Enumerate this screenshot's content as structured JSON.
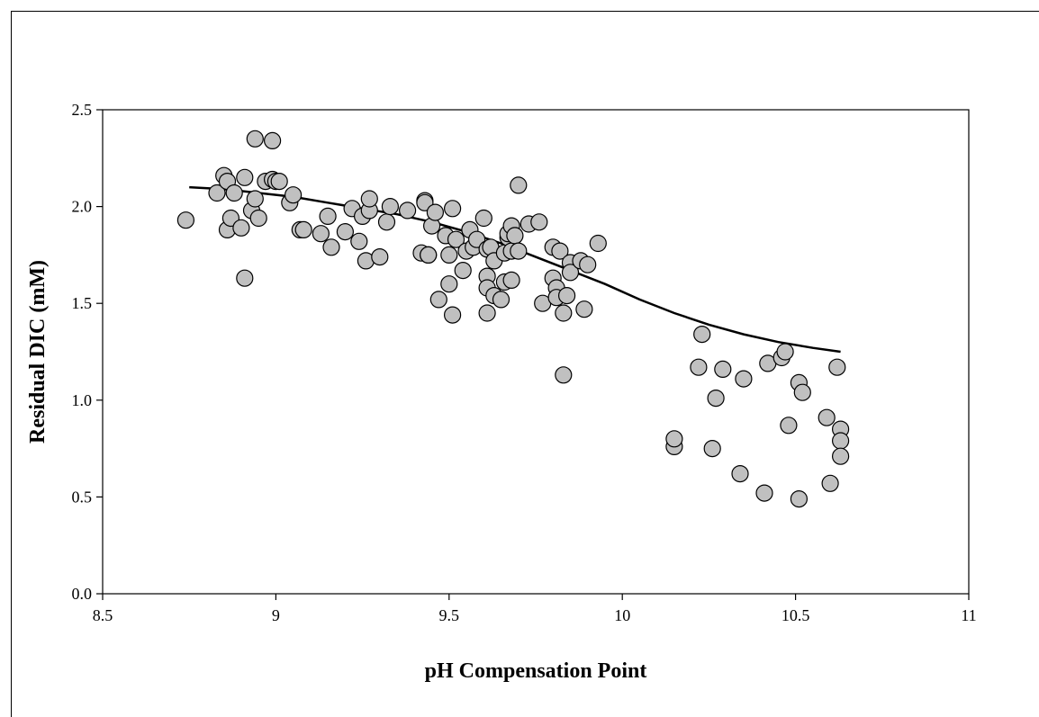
{
  "chart_data": {
    "type": "scatter",
    "title": "",
    "xlabel": "pH Compensation Point",
    "ylabel": "Residual DIC (mM)",
    "xlim": [
      8.5,
      11
    ],
    "ylim": [
      0.0,
      2.5
    ],
    "xticks": [
      8.5,
      9,
      9.5,
      10,
      10.5,
      11
    ],
    "xtick_labels": [
      "8.5",
      "9",
      "9.5",
      "10",
      "10.5",
      "11"
    ],
    "yticks": [
      0.0,
      0.5,
      1.0,
      1.5,
      2.0,
      2.5
    ],
    "ytick_labels": [
      "0.0",
      "0.5",
      "1.0",
      "1.5",
      "2.0",
      "2.5"
    ],
    "grid": false,
    "marker_color": "#c0c0c0",
    "series": [
      {
        "kind": "points",
        "x": [
          8.74,
          8.83,
          8.85,
          8.86,
          8.86,
          8.87,
          8.88,
          8.9,
          8.91,
          8.91,
          8.93,
          8.94,
          8.94,
          8.95,
          8.97,
          8.99,
          8.99,
          9.0,
          9.01,
          9.04,
          9.05,
          9.07,
          9.08,
          9.13,
          9.15,
          9.16,
          9.2,
          9.22,
          9.24,
          9.25,
          9.26,
          9.27,
          9.27,
          9.3,
          9.32,
          9.33,
          9.38,
          9.42,
          9.43,
          9.43,
          9.44,
          9.44,
          9.45,
          9.46,
          9.47,
          9.49,
          9.5,
          9.5,
          9.51,
          9.51,
          9.52,
          9.54,
          9.55,
          9.56,
          9.57,
          9.58,
          9.6,
          9.61,
          9.61,
          9.61,
          9.61,
          9.62,
          9.63,
          9.63,
          9.65,
          9.66,
          9.66,
          9.67,
          9.67,
          9.68,
          9.68,
          9.68,
          9.69,
          9.7,
          9.7,
          9.73,
          9.76,
          9.77,
          9.8,
          9.8,
          9.81,
          9.81,
          9.82,
          9.83,
          9.83,
          9.84,
          9.85,
          9.85,
          9.88,
          9.89,
          9.9,
          9.93,
          10.15,
          10.15,
          10.22,
          10.23,
          10.26,
          10.27,
          10.29,
          10.34,
          10.35,
          10.41,
          10.42,
          10.46,
          10.47,
          10.48,
          10.51,
          10.51,
          10.52,
          10.59,
          10.6,
          10.62,
          10.63,
          10.63,
          10.63
        ],
        "y": [
          1.93,
          2.07,
          2.16,
          2.13,
          1.88,
          1.94,
          2.07,
          1.89,
          1.63,
          2.15,
          1.98,
          2.04,
          2.35,
          1.94,
          2.13,
          2.34,
          2.14,
          2.13,
          2.13,
          2.02,
          2.06,
          1.88,
          1.88,
          1.86,
          1.95,
          1.79,
          1.87,
          1.99,
          1.82,
          1.95,
          1.72,
          1.98,
          2.04,
          1.74,
          1.92,
          2.0,
          1.98,
          1.76,
          2.03,
          2.02,
          1.75,
          1.75,
          1.9,
          1.97,
          1.52,
          1.85,
          1.75,
          1.6,
          1.44,
          1.99,
          1.83,
          1.67,
          1.77,
          1.88,
          1.79,
          1.83,
          1.94,
          1.64,
          1.78,
          1.58,
          1.45,
          1.79,
          1.54,
          1.72,
          1.52,
          1.76,
          1.61,
          1.84,
          1.86,
          1.77,
          1.62,
          1.9,
          1.85,
          2.11,
          1.77,
          1.91,
          1.92,
          1.5,
          1.79,
          1.63,
          1.58,
          1.53,
          1.77,
          1.13,
          1.45,
          1.54,
          1.71,
          1.66,
          1.72,
          1.47,
          1.7,
          1.81,
          0.76,
          0.8,
          1.17,
          1.34,
          0.75,
          1.01,
          1.16,
          0.62,
          1.11,
          0.52,
          1.19,
          1.22,
          1.25,
          0.87,
          1.09,
          0.49,
          1.04,
          0.91,
          0.57,
          1.17,
          0.85,
          0.79,
          0.71
        ]
      },
      {
        "kind": "curve",
        "x": [
          8.75,
          8.85,
          8.95,
          9.05,
          9.15,
          9.25,
          9.35,
          9.45,
          9.55,
          9.65,
          9.75,
          9.85,
          9.95,
          10.05,
          10.15,
          10.25,
          10.35,
          10.45,
          10.55,
          10.63
        ],
        "y": [
          2.1,
          2.09,
          2.07,
          2.05,
          2.02,
          1.99,
          1.96,
          1.92,
          1.87,
          1.81,
          1.74,
          1.67,
          1.6,
          1.52,
          1.45,
          1.39,
          1.34,
          1.3,
          1.27,
          1.25
        ]
      }
    ]
  }
}
